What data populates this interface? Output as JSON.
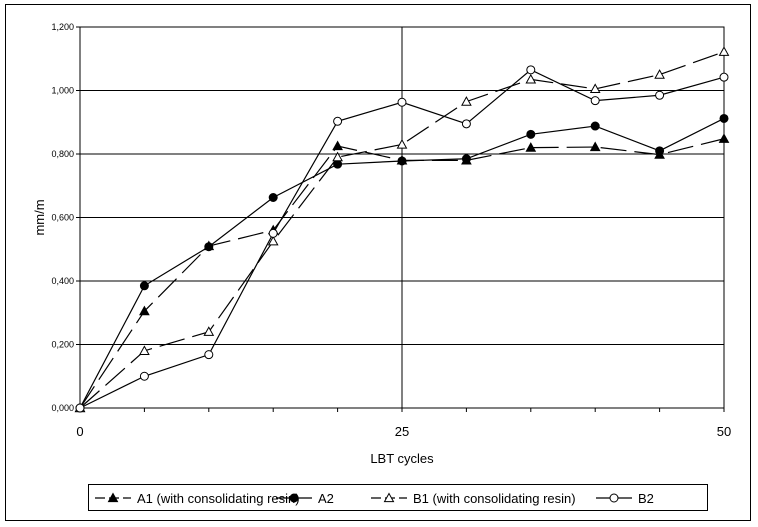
{
  "chart_data": {
    "type": "line",
    "title": "",
    "xlabel": "LBT cycles",
    "ylabel": "mm/m",
    "xlim": [
      0,
      50
    ],
    "ylim": [
      0,
      1.2
    ],
    "x_ticks": [
      {
        "value": 0,
        "label": "0"
      },
      {
        "value": 25,
        "label": "25"
      },
      {
        "value": 50,
        "label": "50"
      }
    ],
    "y_ticks": [
      {
        "value": 0,
        "label": "0,000"
      },
      {
        "value": 0.2,
        "label": "0,200"
      },
      {
        "value": 0.4,
        "label": "0,400"
      },
      {
        "value": 0.6,
        "label": "0,600"
      },
      {
        "value": 0.8,
        "label": "0,800"
      },
      {
        "value": 1.0,
        "label": "1,000"
      },
      {
        "value": 1.2,
        "label": "1,200"
      }
    ],
    "grid": true,
    "legend_position": "bottom",
    "x": [
      0,
      5,
      10,
      15,
      20,
      25,
      30,
      35,
      40,
      45,
      50
    ],
    "series": [
      {
        "name": "A1 (with consolidating resin)",
        "marker": "filled-triangle",
        "dash": "long-dash",
        "color": "#000000",
        "values": [
          0.0,
          0.305,
          0.51,
          0.56,
          0.825,
          0.78,
          0.78,
          0.82,
          0.822,
          0.798,
          0.848
        ]
      },
      {
        "name": "A2",
        "marker": "filled-circle",
        "dash": "solid",
        "color": "#000000",
        "values": [
          0.0,
          0.385,
          0.508,
          0.663,
          0.768,
          0.778,
          0.785,
          0.862,
          0.888,
          0.81,
          0.912
        ]
      },
      {
        "name": "B1 (with consolidating resin)",
        "marker": "open-triangle",
        "dash": "long-dash",
        "color": "#000000",
        "values": [
          0.0,
          0.18,
          0.24,
          0.525,
          0.79,
          0.83,
          0.965,
          1.035,
          1.005,
          1.05,
          1.122
        ]
      },
      {
        "name": "B2",
        "marker": "open-circle",
        "dash": "solid",
        "color": "#000000",
        "values": [
          0.0,
          0.1,
          0.168,
          0.55,
          0.903,
          0.963,
          0.895,
          1.065,
          0.968,
          0.985,
          1.042
        ]
      }
    ]
  }
}
